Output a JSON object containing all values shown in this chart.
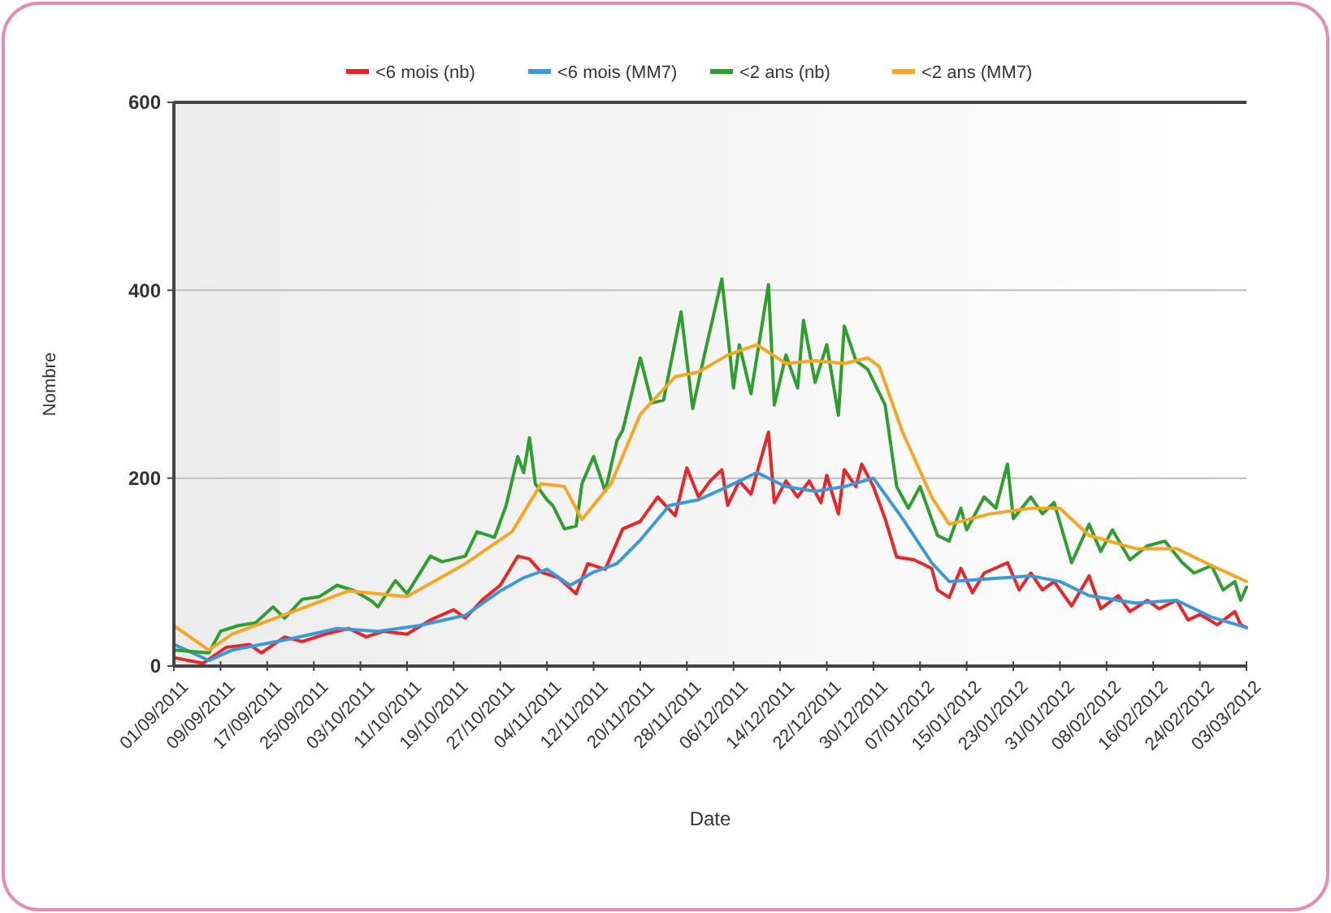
{
  "chart_data": {
    "type": "line",
    "xlabel": "Date",
    "ylabel": "Nombre",
    "ylim": [
      0,
      600
    ],
    "yticks": [
      0,
      200,
      400,
      600
    ],
    "xlim": [
      "2011-09-01",
      "2012-03-03"
    ],
    "xticks": [
      {
        "value": "2011-09-01",
        "label": "01/09/2011"
      },
      {
        "value": "2011-09-09",
        "label": "09/09/2011"
      },
      {
        "value": "2011-09-17",
        "label": "17/09/2011"
      },
      {
        "value": "2011-09-25",
        "label": "25/09/2011"
      },
      {
        "value": "2011-10-03",
        "label": "03/10/2011"
      },
      {
        "value": "2011-10-11",
        "label": "11/10/2011"
      },
      {
        "value": "2011-10-19",
        "label": "19/10/2011"
      },
      {
        "value": "2011-10-27",
        "label": "27/10/2011"
      },
      {
        "value": "2011-11-04",
        "label": "04/11/2011"
      },
      {
        "value": "2011-11-12",
        "label": "12/11/2011"
      },
      {
        "value": "2011-11-20",
        "label": "20/11/2011"
      },
      {
        "value": "2011-11-28",
        "label": "28/11/2011"
      },
      {
        "value": "2011-12-06",
        "label": "06/12/2011"
      },
      {
        "value": "2011-12-14",
        "label": "14/12/2011"
      },
      {
        "value": "2011-12-22",
        "label": "22/12/2011"
      },
      {
        "value": "2011-12-30",
        "label": "30/12/2011"
      },
      {
        "value": "2012-01-07",
        "label": "07/01/2012"
      },
      {
        "value": "2012-01-15",
        "label": "15/01/2012"
      },
      {
        "value": "2012-01-23",
        "label": "23/01/2012"
      },
      {
        "value": "2012-01-31",
        "label": "31/01/2012"
      },
      {
        "value": "2012-02-08",
        "label": "08/02/2012"
      },
      {
        "value": "2012-02-16",
        "label": "16/02/2012"
      },
      {
        "value": "2012-02-24",
        "label": "24/02/2012"
      },
      {
        "value": "2012-03-03",
        "label": "03/03/2012"
      }
    ],
    "grid": "y",
    "legend": "top",
    "marker": "none",
    "line_style": "solid",
    "series": [
      {
        "name": "<6 mois (nb)",
        "color": "#e8262a",
        "x": [
          "2011-09-01",
          "2011-09-06",
          "2011-09-10",
          "2011-09-14",
          "2011-09-16",
          "2011-09-20",
          "2011-09-23",
          "2011-09-27",
          "2011-10-01",
          "2011-10-04",
          "2011-10-07",
          "2011-10-11",
          "2011-10-15",
          "2011-10-19",
          "2011-10-21",
          "2011-10-24",
          "2011-10-27",
          "2011-10-30",
          "2011-11-01",
          "2011-11-03",
          "2011-11-06",
          "2011-11-09",
          "2011-11-11",
          "2011-11-14",
          "2011-11-17",
          "2011-11-20",
          "2011-11-23",
          "2011-11-26",
          "2011-11-28",
          "2011-11-30",
          "2011-12-02",
          "2011-12-04",
          "2011-12-05",
          "2011-12-07",
          "2011-12-09",
          "2011-12-12",
          "2011-12-13",
          "2011-12-15",
          "2011-12-17",
          "2011-12-19",
          "2011-12-21",
          "2011-12-22",
          "2011-12-24",
          "2011-12-25",
          "2011-12-27",
          "2011-12-28",
          "2011-12-30",
          "2012-01-01",
          "2012-01-03",
          "2012-01-06",
          "2012-01-09",
          "2012-01-10",
          "2012-01-12",
          "2012-01-14",
          "2012-01-16",
          "2012-01-18",
          "2012-01-22",
          "2012-01-24",
          "2012-01-26",
          "2012-01-28",
          "2012-01-30",
          "2012-02-02",
          "2012-02-05",
          "2012-02-07",
          "2012-02-10",
          "2012-02-12",
          "2012-02-15",
          "2012-02-17",
          "2012-02-20",
          "2012-02-22",
          "2012-02-24",
          "2012-02-27",
          "2012-03-01",
          "2012-03-02",
          "2012-03-03"
        ],
        "values": [
          9,
          3,
          20,
          23,
          14,
          31,
          26,
          34,
          40,
          31,
          37,
          34,
          49,
          60,
          51,
          71,
          86,
          117,
          114,
          100,
          94,
          77,
          109,
          103,
          146,
          154,
          180,
          160,
          211,
          180,
          197,
          209,
          171,
          197,
          183,
          249,
          174,
          197,
          180,
          197,
          174,
          203,
          162,
          209,
          191,
          215,
          191,
          157,
          116,
          113,
          104,
          81,
          73,
          104,
          78,
          99,
          110,
          81,
          99,
          81,
          90,
          64,
          96,
          61,
          75,
          58,
          70,
          61,
          70,
          49,
          55,
          44,
          58,
          44,
          41
        ]
      },
      {
        "name": "<6 mois (MM7)",
        "color": "#3a9ad9",
        "x": [
          "2011-09-01",
          "2011-09-07",
          "2011-09-11",
          "2011-09-21",
          "2011-09-29",
          "2011-10-06",
          "2011-10-13",
          "2011-10-21",
          "2011-10-27",
          "2011-10-31",
          "2011-11-04",
          "2011-11-08",
          "2011-11-12",
          "2011-11-16",
          "2011-11-20",
          "2011-11-25",
          "2011-11-30",
          "2011-12-05",
          "2011-12-10",
          "2011-12-15",
          "2011-12-20",
          "2011-12-25",
          "2011-12-30",
          "2012-01-04",
          "2012-01-09",
          "2012-01-12",
          "2012-01-19",
          "2012-01-26",
          "2012-01-31",
          "2012-02-05",
          "2012-02-13",
          "2012-02-20",
          "2012-02-26",
          "2012-03-03"
        ],
        "values": [
          23,
          6,
          17,
          29,
          40,
          37,
          43,
          54,
          80,
          94,
          103,
          86,
          100,
          109,
          134,
          171,
          177,
          191,
          206,
          191,
          186,
          191,
          200,
          157,
          110,
          90,
          93,
          96,
          90,
          75,
          67,
          70,
          52,
          41
        ]
      },
      {
        "name": "<2 ans (nb)",
        "color": "#2e9e2e",
        "x": [
          "2011-09-01",
          "2011-09-07",
          "2011-09-09",
          "2011-09-12",
          "2011-09-15",
          "2011-09-18",
          "2011-09-20",
          "2011-09-23",
          "2011-09-26",
          "2011-09-29",
          "2011-10-02",
          "2011-10-05",
          "2011-10-06",
          "2011-10-09",
          "2011-10-11",
          "2011-10-15",
          "2011-10-17",
          "2011-10-21",
          "2011-10-23",
          "2011-10-26",
          "2011-10-28",
          "2011-10-30",
          "2011-10-31",
          "2011-11-01",
          "2011-11-02",
          "2011-11-04",
          "2011-11-05",
          "2011-11-07",
          "2011-11-09",
          "2011-11-10",
          "2011-11-12",
          "2011-11-14",
          "2011-11-16",
          "2011-11-17",
          "2011-11-20",
          "2011-11-22",
          "2011-11-24",
          "2011-11-27",
          "2011-11-29",
          "2011-12-01",
          "2011-12-04",
          "2011-12-06",
          "2011-12-07",
          "2011-12-09",
          "2011-12-12",
          "2011-12-13",
          "2011-12-15",
          "2011-12-17",
          "2011-12-18",
          "2011-12-20",
          "2011-12-22",
          "2011-12-24",
          "2011-12-25",
          "2011-12-27",
          "2011-12-29",
          "2012-01-01",
          "2012-01-03",
          "2012-01-05",
          "2012-01-07",
          "2012-01-10",
          "2012-01-12",
          "2012-01-14",
          "2012-01-15",
          "2012-01-18",
          "2012-01-20",
          "2012-01-22",
          "2012-01-23",
          "2012-01-26",
          "2012-01-28",
          "2012-01-30",
          "2012-02-02",
          "2012-02-05",
          "2012-02-07",
          "2012-02-09",
          "2012-02-12",
          "2012-02-15",
          "2012-02-18",
          "2012-02-21",
          "2012-02-23",
          "2012-02-26",
          "2012-02-28",
          "2012-03-01",
          "2012-03-02",
          "2012-03-03"
        ],
        "values": [
          17,
          14,
          37,
          43,
          46,
          63,
          51,
          71,
          74,
          86,
          80,
          69,
          63,
          91,
          77,
          117,
          111,
          117,
          143,
          137,
          171,
          223,
          206,
          243,
          194,
          177,
          171,
          146,
          149,
          194,
          223,
          186,
          240,
          251,
          328,
          280,
          283,
          377,
          274,
          331,
          412,
          296,
          342,
          290,
          406,
          278,
          331,
          296,
          368,
          302,
          342,
          267,
          362,
          325,
          316,
          278,
          191,
          168,
          191,
          139,
          133,
          168,
          145,
          180,
          168,
          215,
          157,
          180,
          162,
          174,
          110,
          151,
          122,
          145,
          113,
          128,
          133,
          110,
          99,
          107,
          81,
          90,
          70,
          84
        ]
      },
      {
        "name": "<2 ans (MM7)",
        "color": "#f5a623",
        "x": [
          "2011-09-01",
          "2011-09-07",
          "2011-09-11",
          "2011-09-21",
          "2011-10-01",
          "2011-10-11",
          "2011-10-21",
          "2011-10-29",
          "2011-11-03",
          "2011-11-07",
          "2011-11-10",
          "2011-11-15",
          "2011-11-20",
          "2011-11-26",
          "2011-11-30",
          "2011-12-05",
          "2011-12-10",
          "2011-12-15",
          "2011-12-20",
          "2011-12-25",
          "2011-12-29",
          "2011-12-31",
          "2012-01-04",
          "2012-01-09",
          "2012-01-12",
          "2012-01-19",
          "2012-01-26",
          "2012-01-31",
          "2012-02-05",
          "2012-02-13",
          "2012-02-20",
          "2012-02-26",
          "2012-03-03"
        ],
        "values": [
          43,
          17,
          34,
          57,
          80,
          74,
          109,
          143,
          194,
          191,
          156,
          194,
          268,
          308,
          313,
          331,
          342,
          322,
          325,
          322,
          328,
          319,
          249,
          180,
          151,
          162,
          168,
          168,
          139,
          125,
          125,
          107,
          90
        ]
      }
    ]
  }
}
